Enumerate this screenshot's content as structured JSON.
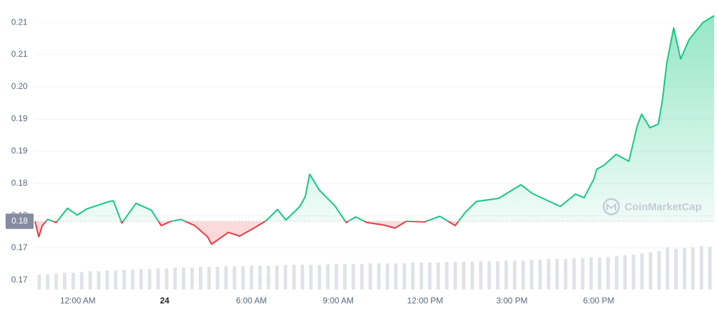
{
  "chart_data": {
    "type": "line",
    "watermark": "CoinMarketCap",
    "xlim": [
      -1.48,
      21.99
    ],
    "xticks": [
      {
        "value": 0,
        "label": "12:00 AM"
      },
      {
        "value": 3,
        "label": "24"
      },
      {
        "value": 6,
        "label": "6:00 AM"
      },
      {
        "value": 9,
        "label": "9:00 AM"
      },
      {
        "value": 12,
        "label": "12:00 PM"
      },
      {
        "value": 15,
        "label": "3:00 PM"
      },
      {
        "value": 18,
        "label": "6:00 PM"
      }
    ],
    "ylim": [
      0.1672,
      0.2128
    ],
    "yticks": [
      {
        "value": 0.1687,
        "label": "0.17"
      },
      {
        "value": 0.1739,
        "label": "0.17"
      },
      {
        "value": 0.1791,
        "label": "0.18"
      },
      {
        "value": 0.1843,
        "label": "0.18"
      },
      {
        "value": 0.1895,
        "label": "0.19"
      },
      {
        "value": 0.1947,
        "label": "0.19"
      },
      {
        "value": 0.1999,
        "label": "0.20"
      },
      {
        "value": 0.2051,
        "label": "0.21"
      },
      {
        "value": 0.2103,
        "label": "0.21"
      }
    ],
    "grid": true,
    "reference": {
      "value": 0.1782,
      "label": "0.18"
    },
    "x": [
      -1.48,
      -1.35,
      -1.23,
      -1.04,
      -0.75,
      -0.36,
      -0.02,
      0.31,
      0.7,
      1.09,
      1.23,
      1.52,
      2.01,
      2.54,
      2.88,
      3.22,
      3.56,
      4.04,
      4.48,
      4.62,
      5.2,
      5.59,
      6.12,
      6.51,
      6.9,
      7.19,
      7.67,
      7.86,
      8.01,
      8.35,
      8.88,
      9.27,
      9.6,
      9.99,
      10.57,
      10.96,
      11.35,
      11.98,
      12.51,
      13.04,
      13.38,
      13.77,
      14.54,
      15.31,
      15.7,
      16.67,
      17.2,
      17.49,
      17.83,
      17.93,
      18.17,
      18.6,
      19.04,
      19.33,
      19.48,
      19.77,
      20.06,
      20.2,
      20.35,
      20.59,
      20.83,
      21.12,
      21.6,
      21.99
    ],
    "series": [
      {
        "color": "#16c784",
        "color_below": "#ea3943",
        "values": [
          0.1782,
          0.1757,
          0.1775,
          0.1785,
          0.178,
          0.1803,
          0.1792,
          0.1802,
          0.1808,
          0.1814,
          0.1815,
          0.1779,
          0.1811,
          0.18,
          0.1775,
          0.1782,
          0.1785,
          0.1775,
          0.1757,
          0.1745,
          0.1764,
          0.1758,
          0.1772,
          0.1783,
          0.1801,
          0.1784,
          0.1806,
          0.1822,
          0.1858,
          0.1832,
          0.1807,
          0.178,
          0.1789,
          0.178,
          0.1776,
          0.1771,
          0.1782,
          0.1781,
          0.179,
          0.1775,
          0.1796,
          0.1814,
          0.1819,
          0.1841,
          0.1827,
          0.1806,
          0.1826,
          0.182,
          0.185,
          0.1866,
          0.1872,
          0.189,
          0.1879,
          0.1936,
          0.1955,
          0.1933,
          0.1939,
          0.1977,
          0.2037,
          0.2094,
          0.2044,
          0.2075,
          0.2103,
          0.2114
        ]
      }
    ],
    "volume": {
      "color": "#dfe2e6",
      "values": [
        20,
        21,
        22,
        23,
        23,
        24,
        25,
        25,
        26,
        26,
        27,
        27,
        28,
        28,
        29,
        29,
        30,
        30,
        30,
        31,
        31,
        31,
        32,
        32,
        32,
        33,
        33,
        33,
        33,
        34,
        34,
        34,
        34,
        34,
        35,
        35,
        35,
        35,
        35,
        36,
        36,
        36,
        36,
        36,
        37,
        37,
        37,
        37,
        38,
        38,
        38,
        38,
        39,
        39,
        39,
        40,
        40,
        40,
        41,
        41,
        42,
        42,
        42,
        43,
        43,
        44,
        44,
        45,
        46,
        47,
        48,
        50,
        51,
        53,
        58,
        56,
        57,
        58,
        60,
        59
      ]
    }
  }
}
